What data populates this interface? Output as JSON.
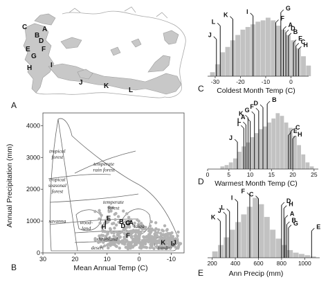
{
  "panels": {
    "A": {
      "letter": "A",
      "sites": [
        {
          "label": "C"
        },
        {
          "label": "A"
        },
        {
          "label": "B"
        },
        {
          "label": "D"
        },
        {
          "label": "F"
        },
        {
          "label": "E"
        },
        {
          "label": "G"
        },
        {
          "label": "H"
        },
        {
          "label": "I"
        },
        {
          "label": "J"
        },
        {
          "label": "K"
        },
        {
          "label": "L"
        }
      ]
    },
    "B": {
      "letter": "B"
    },
    "C": {
      "letter": "C"
    },
    "D": {
      "letter": "D"
    },
    "E": {
      "letter": "E"
    }
  },
  "chart_data": [
    {
      "id": "B",
      "type": "scatter",
      "xlabel": "Mean Annual Temp (C)",
      "ylabel": "Annual Precipitation (mm)",
      "xlim": [
        30,
        -14
      ],
      "ylim": [
        0,
        4400
      ],
      "xticks": [
        30,
        20,
        10,
        0,
        -10
      ],
      "yticks": [
        0,
        1000,
        2000,
        3000,
        4000
      ],
      "biomes": [
        {
          "label": "tropical forest",
          "lines": [
            "tropical",
            "forest"
          ],
          "x": 25.5,
          "y": 3150
        },
        {
          "label": "tropical seasonal forest",
          "lines": [
            "tropical",
            "seasonal",
            "forest"
          ],
          "x": 25.5,
          "y": 2250
        },
        {
          "label": "temperate rain forest",
          "lines": [
            "temperate",
            "rain forest"
          ],
          "x": 11,
          "y": 2750
        },
        {
          "label": "temperate forest",
          "lines": [
            "temperate",
            "forest"
          ],
          "x": 8,
          "y": 1550
        },
        {
          "label": "savanna",
          "lines": [
            "savanna"
          ],
          "x": 25.5,
          "y": 950
        },
        {
          "label": "wood-land",
          "lines": [
            "wood-",
            "land"
          ],
          "x": 16.5,
          "y": 900
        },
        {
          "label": "taiga",
          "lines": [
            "taiga"
          ],
          "x": 0,
          "y": 780
        },
        {
          "label": "shrubland",
          "lines": [
            "shrubland"
          ],
          "x": 10,
          "y": 380
        },
        {
          "label": "desert",
          "lines": [
            "desert"
          ],
          "x": 13,
          "y": 110
        },
        {
          "label": "tundra",
          "lines": [
            "tundra"
          ],
          "x": -8,
          "y": 110
        }
      ],
      "sites": [
        {
          "label": "A",
          "x": 2.5,
          "y": 880
        },
        {
          "label": "B",
          "x": 5.5,
          "y": 920
        },
        {
          "label": "C",
          "x": 3.5,
          "y": 880
        },
        {
          "label": "D",
          "x": 5,
          "y": 780
        },
        {
          "label": "E",
          "x": 9.5,
          "y": 1020
        },
        {
          "label": "F",
          "x": 3.5,
          "y": 480
        },
        {
          "label": "G",
          "x": 3.5,
          "y": 870
        },
        {
          "label": "H",
          "x": 11,
          "y": 750
        },
        {
          "label": "I",
          "x": 10.5,
          "y": 880
        },
        {
          "label": "J",
          "x": -11,
          "y": 260
        },
        {
          "label": "K",
          "x": -7.5,
          "y": 260
        },
        {
          "label": "L",
          "x": -10.5,
          "y": 230
        }
      ]
    },
    {
      "id": "C",
      "type": "bar",
      "xlabel": "Coldest Month Temp (C)",
      "xlim": [
        -33,
        7
      ],
      "ylim": [
        0,
        100
      ],
      "xticks": [
        -30,
        -20,
        -10,
        0
      ],
      "bins_start": -32,
      "bin_width": 2,
      "values": [
        6,
        18,
        36,
        44,
        54,
        62,
        70,
        74,
        78,
        82,
        84,
        88,
        84,
        76,
        70,
        62,
        54,
        42,
        30,
        16
      ],
      "sites": [
        {
          "label": "G",
          "x": -4
        },
        {
          "label": "I",
          "x": -15
        },
        {
          "label": "K",
          "x": -23
        },
        {
          "label": "F",
          "x": -6
        },
        {
          "label": "L",
          "x": -28
        },
        {
          "label": "A",
          "x": -3
        },
        {
          "label": "D",
          "x": -2
        },
        {
          "label": "B",
          "x": -1
        },
        {
          "label": "J",
          "x": -29.5
        },
        {
          "label": "E",
          "x": 1
        },
        {
          "label": "C",
          "x": 2
        },
        {
          "label": "H",
          "x": 3
        }
      ]
    },
    {
      "id": "D",
      "type": "bar",
      "xlabel": "Warmest Month Temp (C)",
      "xlim": [
        0,
        26
      ],
      "ylim": [
        0,
        100
      ],
      "xticks": [
        0,
        5,
        10,
        15,
        20,
        25
      ],
      "bins_start": 3,
      "bin_width": 1,
      "values": [
        4,
        6,
        10,
        16,
        26,
        34,
        40,
        48,
        54,
        60,
        64,
        70,
        76,
        84,
        80,
        70,
        62,
        50,
        36,
        22,
        10,
        4
      ],
      "sites": [
        {
          "label": "B",
          "x": 14
        },
        {
          "label": "D",
          "x": 13
        },
        {
          "label": "F",
          "x": 12
        },
        {
          "label": "G",
          "x": 11
        },
        {
          "label": "K",
          "x": 9.5
        },
        {
          "label": "A",
          "x": 10
        },
        {
          "label": "L",
          "x": 9
        },
        {
          "label": "I",
          "x": 8.5
        },
        {
          "label": "C",
          "x": 19.5
        },
        {
          "label": "E",
          "x": 19
        },
        {
          "label": "H",
          "x": 20
        },
        {
          "label": "J",
          "x": 7
        }
      ]
    },
    {
      "id": "E",
      "type": "bar",
      "xlabel": "Ann Precip (mm)",
      "xlim": [
        160,
        1130
      ],
      "ylim": [
        0,
        100
      ],
      "xticks": [
        200,
        400,
        600,
        800,
        1000
      ],
      "bins_start": 200,
      "bin_width": 50,
      "values": [
        10,
        20,
        32,
        44,
        56,
        68,
        80,
        94,
        84,
        64,
        44,
        30,
        20,
        12,
        8,
        6,
        4,
        2
      ],
      "sites": [
        {
          "label": "F",
          "x": 525
        },
        {
          "label": "C",
          "x": 600
        },
        {
          "label": "I",
          "x": 420
        },
        {
          "label": "D",
          "x": 800
        },
        {
          "label": "H",
          "x": 820
        },
        {
          "label": "L",
          "x": 350
        },
        {
          "label": "J",
          "x": 320
        },
        {
          "label": "A",
          "x": 830
        },
        {
          "label": "K",
          "x": 270
        },
        {
          "label": "B",
          "x": 845
        },
        {
          "label": "G",
          "x": 860
        },
        {
          "label": "E",
          "x": 1060
        }
      ]
    }
  ]
}
